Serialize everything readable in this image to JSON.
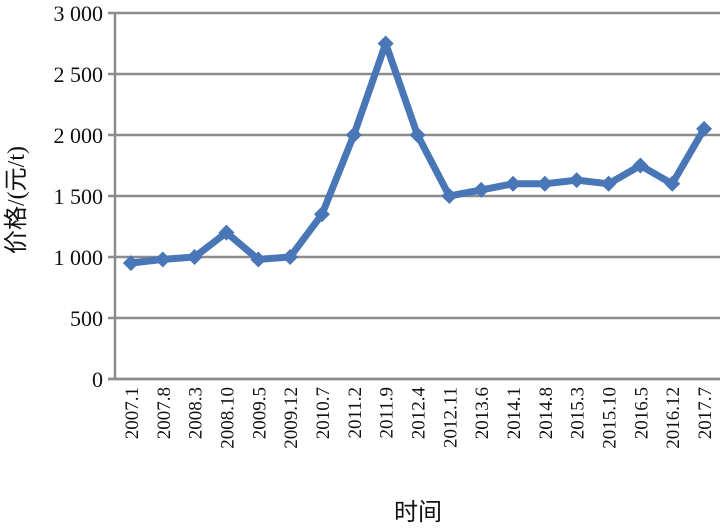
{
  "chart_data": {
    "type": "line",
    "title": "",
    "xlabel": "时间",
    "ylabel": "价格/(元/t)",
    "ylim": [
      0,
      3000
    ],
    "yticks": [
      0,
      500,
      1000,
      1500,
      2000,
      2500,
      3000
    ],
    "ytick_labels": [
      "0",
      "500",
      "1 000",
      "1 500",
      "2 000",
      "2 500",
      "3 000"
    ],
    "grid": "horizontal",
    "legend": null,
    "categories": [
      "2007.1",
      "2007.8",
      "2008.3",
      "2008.10",
      "2009.5",
      "2009.12",
      "2010.7",
      "2011.2",
      "2011.9",
      "2012.4",
      "2012.11",
      "2013.6",
      "2014.1",
      "2014.8",
      "2015.3",
      "2015.10",
      "2016.5",
      "2016.12",
      "2017.7"
    ],
    "series": [
      {
        "name": "价格",
        "color": "#4876B6",
        "marker": "diamond",
        "values": [
          950,
          980,
          1000,
          1200,
          980,
          1000,
          1350,
          2000,
          2750,
          2000,
          1500,
          1550,
          1600,
          1600,
          1630,
          1600,
          1750,
          1600,
          2050
        ]
      }
    ]
  },
  "colors": {
    "line": "#4876B6",
    "grid": "#8c8c8c",
    "axis": "#8c8c8c"
  }
}
